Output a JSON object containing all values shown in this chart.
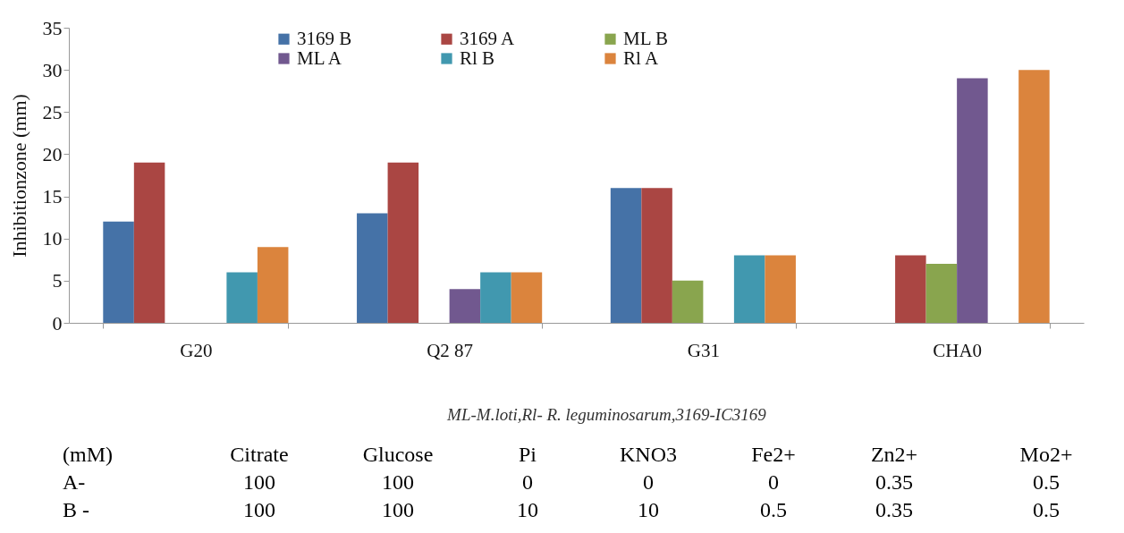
{
  "chart_data": {
    "type": "bar",
    "ylabel": "Inhibitionzone (mm)",
    "categories": [
      "G20",
      "Q2 87",
      "G31",
      "CHA0"
    ],
    "series": [
      {
        "name": "3169 B",
        "color": "#4572a7",
        "values": [
          12,
          13,
          16,
          null
        ]
      },
      {
        "name": "3169 A",
        "color": "#aa4643",
        "values": [
          19,
          19,
          16,
          8
        ]
      },
      {
        "name": "ML B",
        "color": "#89a54e",
        "values": [
          null,
          null,
          5,
          7
        ]
      },
      {
        "name": "ML A",
        "color": "#71588f",
        "values": [
          null,
          4,
          null,
          29
        ]
      },
      {
        "name": "Rl B",
        "color": "#4198af",
        "values": [
          6,
          6,
          8,
          null
        ]
      },
      {
        "name": "Rl A",
        "color": "#db843d",
        "values": [
          9,
          6,
          8,
          30
        ]
      }
    ],
    "ylim": [
      0,
      35
    ],
    "yticks": [
      0,
      5,
      10,
      15,
      20,
      25,
      30,
      35
    ],
    "grid": false,
    "legend": "top",
    "annotations": [
      "ML-M.loti,Rl- R. leguminosarum,3169-IC3169",
      "(mM)",
      "Citrate",
      "Glucose",
      "Pi",
      "KNO3",
      "Fe2+",
      "Zn2+",
      "Mo2+",
      "A-",
      "100",
      "100",
      "0",
      "0",
      "0",
      "0.35",
      "0.5",
      "B -",
      "100",
      "100",
      "10",
      "10",
      "0.5",
      "0.35",
      "0.5"
    ]
  }
}
